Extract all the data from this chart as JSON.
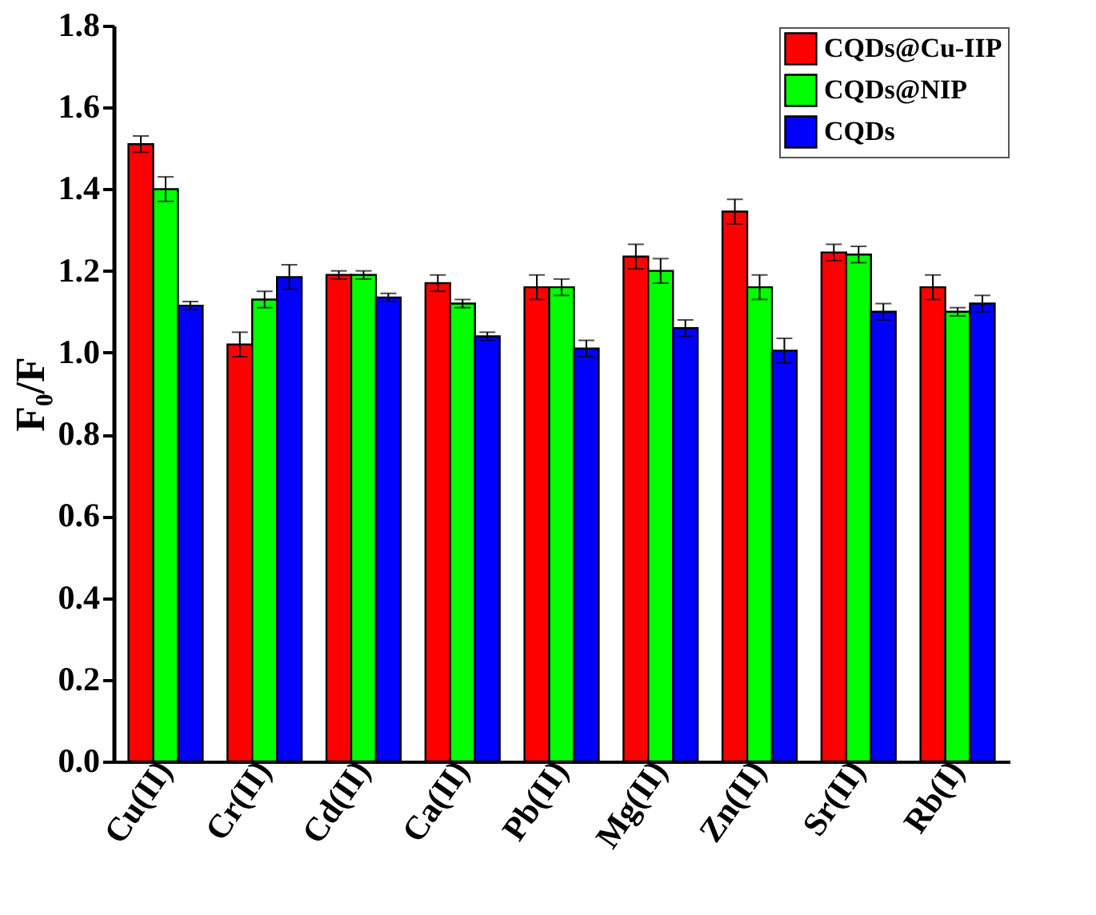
{
  "chart_data": {
    "type": "bar",
    "ylabel": "F₀/F",
    "categories": [
      "Cu(II)",
      "Cr(II)",
      "Cd(II)",
      "Ca(II)",
      "Pb(II)",
      "Mg(II)",
      "Zn(II)",
      "Sr(II)",
      "Rb(I)"
    ],
    "series": [
      {
        "name": "CQDs@Cu-IIP",
        "color": "#ff0000",
        "values": [
          1.51,
          1.02,
          1.19,
          1.17,
          1.16,
          1.235,
          1.345,
          1.245,
          1.16
        ],
        "errors": [
          0.02,
          0.03,
          0.01,
          0.02,
          0.03,
          0.03,
          0.03,
          0.02,
          0.03
        ]
      },
      {
        "name": "CQDs@NIP",
        "color": "#00ff00",
        "values": [
          1.4,
          1.13,
          1.19,
          1.12,
          1.16,
          1.2,
          1.16,
          1.24,
          1.1
        ],
        "errors": [
          0.03,
          0.02,
          0.01,
          0.01,
          0.02,
          0.03,
          0.03,
          0.02,
          0.01
        ]
      },
      {
        "name": "CQDs",
        "color": "#0000ff",
        "values": [
          1.115,
          1.185,
          1.135,
          1.04,
          1.01,
          1.06,
          1.005,
          1.1,
          1.12
        ],
        "errors": [
          0.01,
          0.03,
          0.01,
          0.01,
          0.02,
          0.02,
          0.03,
          0.02,
          0.02
        ]
      }
    ],
    "ylim": [
      0,
      1.8
    ],
    "yticks": [
      {
        "value": 0,
        "label": "0.0"
      },
      {
        "value": 0.2,
        "label": "0.2"
      },
      {
        "value": 0.4,
        "label": "0.4"
      },
      {
        "value": 0.6,
        "label": "0.6"
      },
      {
        "value": 0.8,
        "label": "0.8"
      },
      {
        "value": 1.0,
        "label": "1.0"
      },
      {
        "value": 1.2,
        "label": "1.2"
      },
      {
        "value": 1.4,
        "label": "1.4"
      },
      {
        "value": 1.6,
        "label": "1.6"
      },
      {
        "value": 1.8,
        "label": "1.8"
      }
    ],
    "grid": false,
    "legend": "top right"
  }
}
